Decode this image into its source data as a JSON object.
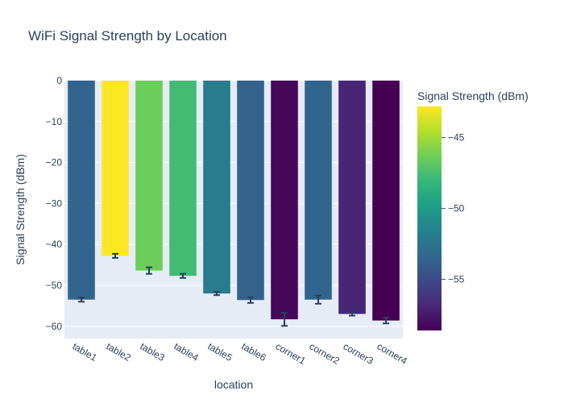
{
  "chart_data": {
    "type": "bar",
    "title": "WiFi Signal Strength by Location",
    "xlabel": "location",
    "ylabel": "Signal Strength (dBm)",
    "categories": [
      "table1",
      "table2",
      "table3",
      "table4",
      "table5",
      "table6",
      "corner1",
      "corner2",
      "corner3",
      "corner4"
    ],
    "values": [
      -53.5,
      -42.8,
      -46.4,
      -47.7,
      -52.0,
      -53.6,
      -58.3,
      -53.5,
      -57.0,
      -58.6
    ],
    "error": [
      0.5,
      0.5,
      0.8,
      0.5,
      0.4,
      0.7,
      1.6,
      1.0,
      0.4,
      0.7
    ],
    "ylim": [
      -63.0,
      0
    ],
    "yticks": [
      0,
      -10,
      -20,
      -30,
      -40,
      -50,
      -60
    ],
    "ytick_labels": [
      "0",
      "−10",
      "−20",
      "−30",
      "−40",
      "−50",
      "−60"
    ],
    "grid": true,
    "colorbar": {
      "title": "Signal Strength (dBm)",
      "colorscale": "Viridis",
      "range": [
        -58.6,
        -42.8
      ],
      "ticks": [
        -45,
        -50,
        -55
      ],
      "tick_labels": [
        "−45",
        "−50",
        "−55"
      ]
    },
    "colors": {
      "plot_bg": "#e5ecf6",
      "grid": "#ffffff",
      "text": "#2a3f5f",
      "error_bar": "#2a3f5f"
    }
  }
}
